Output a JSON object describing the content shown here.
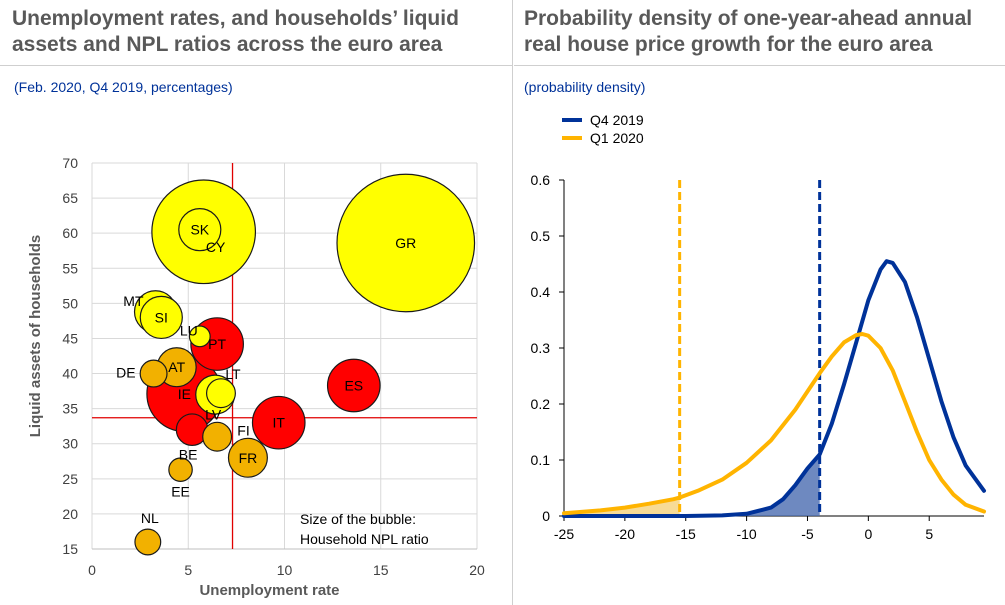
{
  "chart_data": [
    {
      "type": "scatter",
      "title": "Unemployment rates, and households’ liquid assets and NPL ratios across the euro area",
      "title_lines": [
        "Unemployment rates, and households’ liquid",
        "assets and NPL ratios across the euro area"
      ],
      "subtitle": "(Feb. 2020, Q4 2019, percentages)",
      "xlabel": "Unemployment rate",
      "ylabel": "Liquid assets of households",
      "xlim": [
        0,
        20
      ],
      "ylim": [
        15,
        70
      ],
      "xticks": [
        0,
        5,
        10,
        15,
        20
      ],
      "yticks": [
        15,
        20,
        25,
        30,
        35,
        40,
        45,
        50,
        55,
        60,
        65,
        70
      ],
      "grid": true,
      "reference_lines": {
        "x": 7.3,
        "y": 33.7
      },
      "annotation": [
        "Size of the bubble:",
        "Household NPL ratio"
      ],
      "colors": {
        "red": "#ff0000",
        "yellow": "#ffff00",
        "orange": "#f2b100",
        "line": "#e00000"
      },
      "points": [
        {
          "label": "GR",
          "x": 16.3,
          "y": 58.6,
          "npl": 40,
          "color": "yellow",
          "label_pos": "inside"
        },
        {
          "label": "CY",
          "x": 5.8,
          "y": 60.2,
          "npl": 22,
          "color": "yellow",
          "label_pos": "inside-low"
        },
        {
          "label": "SK",
          "x": 5.6,
          "y": 60.5,
          "npl": 3,
          "color": "yellow",
          "label_pos": "inside"
        },
        {
          "label": "MT",
          "x": 3.3,
          "y": 48.8,
          "npl": 3,
          "color": "yellow",
          "label_pos": "left"
        },
        {
          "label": "SI",
          "x": 3.6,
          "y": 48.0,
          "npl": 3,
          "color": "yellow",
          "label_pos": "inside"
        },
        {
          "label": "LU",
          "x": 5.6,
          "y": 45.3,
          "npl": 0.5,
          "color": "yellow",
          "label_pos": "left"
        },
        {
          "label": "PT",
          "x": 6.5,
          "y": 44.2,
          "npl": 5,
          "color": "red",
          "label_pos": "inside"
        },
        {
          "label": "AT",
          "x": 4.4,
          "y": 40.9,
          "npl": 2.5,
          "color": "orange",
          "label_pos": "inside"
        },
        {
          "label": "DE",
          "x": 3.2,
          "y": 40.0,
          "npl": 1,
          "color": "orange",
          "label_pos": "left"
        },
        {
          "label": "LT",
          "x": 6.7,
          "y": 37.2,
          "npl": 1.2,
          "color": "yellow",
          "label_pos": "up"
        },
        {
          "label": "IE",
          "x": 4.8,
          "y": 37.1,
          "npl": 11,
          "color": "red",
          "label_pos": "inside"
        },
        {
          "label": "LV",
          "x": 6.4,
          "y": 37.0,
          "npl": 2.5,
          "color": "yellow",
          "label_pos": "below"
        },
        {
          "label": "ES",
          "x": 13.6,
          "y": 38.3,
          "npl": 5,
          "color": "red",
          "label_pos": "inside"
        },
        {
          "label": "IT",
          "x": 9.7,
          "y": 33.0,
          "npl": 5,
          "color": "red",
          "label_pos": "inside"
        },
        {
          "label": "BE",
          "x": 5.2,
          "y": 32.0,
          "npl": 1.5,
          "color": "red",
          "label_pos": "below-left"
        },
        {
          "label": "FI",
          "x": 6.5,
          "y": 31.0,
          "npl": 1.2,
          "color": "orange",
          "label_pos": "right"
        },
        {
          "label": "FR",
          "x": 8.1,
          "y": 28.0,
          "npl": 2.5,
          "color": "orange",
          "label_pos": "inside"
        },
        {
          "label": "EE",
          "x": 4.6,
          "y": 26.3,
          "npl": 0.7,
          "color": "orange",
          "label_pos": "below"
        },
        {
          "label": "NL",
          "x": 2.9,
          "y": 16.0,
          "npl": 0.9,
          "color": "orange",
          "label_pos": "up"
        }
      ]
    },
    {
      "type": "line",
      "title": "Probability density of one-year-ahead annual real house price growth for the euro area",
      "title_lines": [
        "Probability density of one-year-ahead annual",
        "real house price growth for the euro area"
      ],
      "subtitle": "(probability density)",
      "xlim": [
        -25,
        9.5
      ],
      "ylim": [
        0,
        0.6
      ],
      "xticks": [
        -25,
        -20,
        -15,
        -10,
        -5,
        0,
        5
      ],
      "yticks": [
        0,
        0.1,
        0.2,
        0.3,
        0.4,
        0.5,
        0.6
      ],
      "ytick_labels": [
        "0",
        "0.1",
        "0.2",
        "0.3",
        "0.4",
        "0.5",
        "0.6"
      ],
      "grid": false,
      "legend_position": "top-left",
      "series": [
        {
          "name": "Q4 2019",
          "color": "#003299",
          "cutoff_x": -4.0,
          "x": [
            -25,
            -20,
            -15,
            -12,
            -10,
            -8,
            -7,
            -6,
            -5,
            -4,
            -3,
            -2,
            -1,
            0,
            1,
            1.5,
            2,
            3,
            4,
            5,
            6,
            7,
            8,
            9.5
          ],
          "y": [
            0,
            0,
            0,
            0.001,
            0.004,
            0.015,
            0.03,
            0.055,
            0.085,
            0.11,
            0.165,
            0.235,
            0.31,
            0.385,
            0.44,
            0.455,
            0.452,
            0.418,
            0.355,
            0.28,
            0.205,
            0.14,
            0.09,
            0.045
          ]
        },
        {
          "name": "Q1 2020",
          "color": "#ffb400",
          "cutoff_x": -15.5,
          "x": [
            -25,
            -22,
            -20,
            -18,
            -16,
            -15.5,
            -14,
            -12,
            -10,
            -8,
            -6,
            -4,
            -3,
            -2,
            -1,
            -0.5,
            0,
            1,
            2,
            3,
            4,
            5,
            6,
            7,
            8,
            9.5
          ],
          "y": [
            0.005,
            0.01,
            0.015,
            0.022,
            0.03,
            0.033,
            0.045,
            0.065,
            0.095,
            0.135,
            0.19,
            0.255,
            0.285,
            0.31,
            0.323,
            0.325,
            0.322,
            0.3,
            0.26,
            0.205,
            0.15,
            0.1,
            0.065,
            0.038,
            0.02,
            0.008
          ]
        }
      ]
    }
  ]
}
